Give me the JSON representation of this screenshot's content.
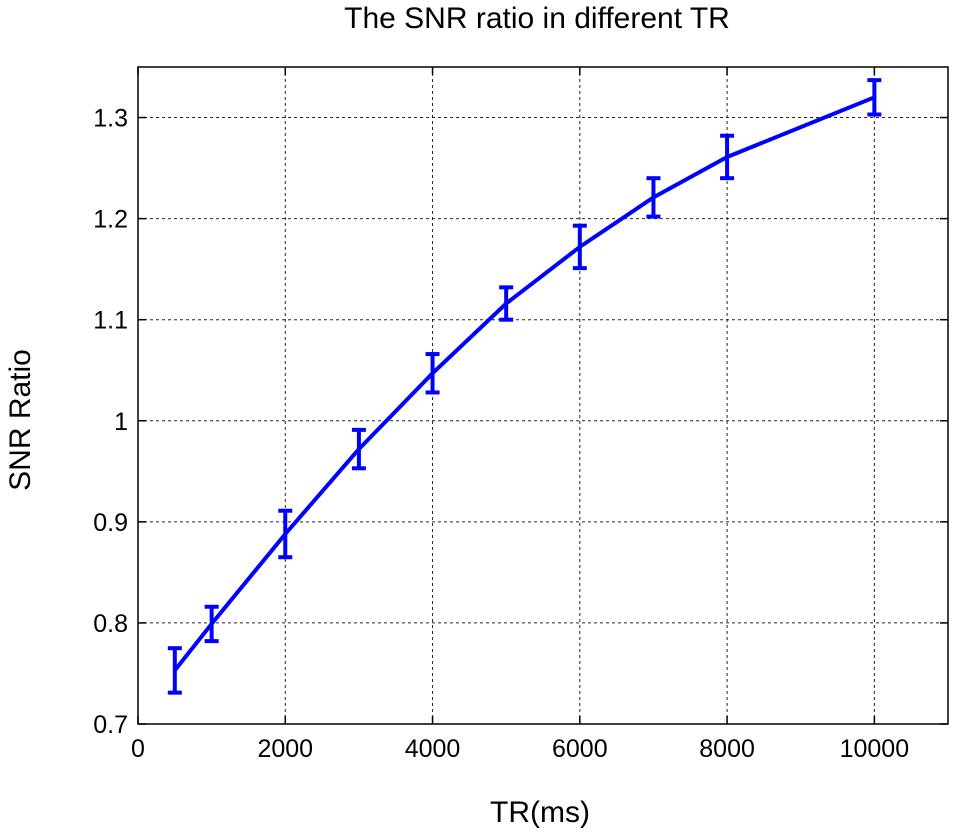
{
  "chart_data": {
    "type": "line",
    "title": "The SNR ratio in different TR",
    "xlabel": "TR(ms)",
    "ylabel": "SNR Ratio",
    "xlim": [
      0,
      11000
    ],
    "ylim": [
      0.7,
      1.35
    ],
    "xticks": [
      0,
      2000,
      4000,
      6000,
      8000,
      10000
    ],
    "xtick_labels": [
      "0",
      "2000",
      "4000",
      "6000",
      "8000",
      "10000"
    ],
    "yticks": [
      0.7,
      0.8,
      0.9,
      1.0,
      1.1,
      1.2,
      1.3
    ],
    "ytick_labels": [
      "0.7",
      "0.8",
      "0.9",
      "1",
      "1.1",
      "1.2",
      "1.3"
    ],
    "grid": true,
    "series": [
      {
        "color": "#0000ff",
        "x": [
          500,
          1000,
          2000,
          3000,
          4000,
          5000,
          6000,
          7000,
          8000,
          10000
        ],
        "y": [
          0.753,
          0.799,
          0.888,
          0.972,
          1.047,
          1.116,
          1.172,
          1.221,
          1.261,
          1.32
        ],
        "error": [
          0.022,
          0.017,
          0.023,
          0.019,
          0.019,
          0.016,
          0.021,
          0.019,
          0.021,
          0.017
        ]
      }
    ]
  }
}
